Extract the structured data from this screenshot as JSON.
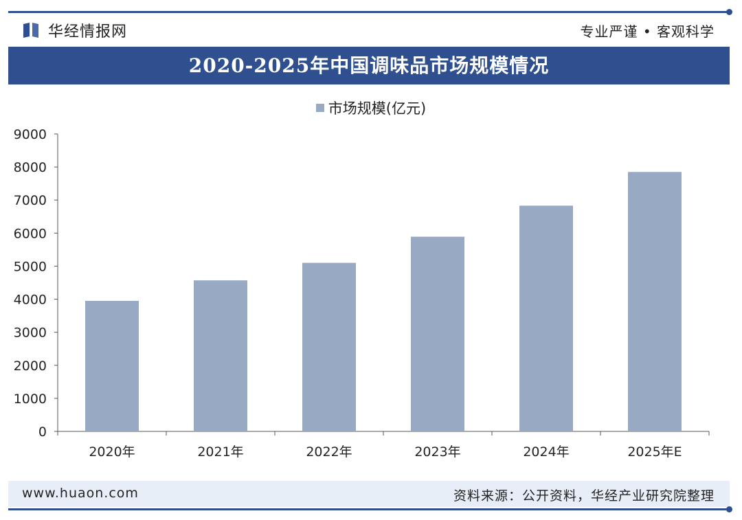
{
  "header": {
    "brand": "华经情报网",
    "slogan": "专业严谨 • 客观科学"
  },
  "chart_data": {
    "type": "bar",
    "title": "2020-2025年中国调味品市场规模情况",
    "categories": [
      "2020年",
      "2021年",
      "2022年",
      "2023年",
      "2024年",
      "2025年E"
    ],
    "series": [
      {
        "name": "市场规模(亿元)",
        "values": [
          3950,
          4570,
          5100,
          5890,
          6830,
          7850
        ],
        "color": "#98a9c4"
      }
    ],
    "ylim": [
      0,
      9000
    ],
    "yticks": [
      0,
      1000,
      2000,
      3000,
      4000,
      5000,
      6000,
      7000,
      8000,
      9000
    ],
    "grid": false,
    "legend": "top-center"
  },
  "footer": {
    "website": "www.huaon.com",
    "source": "资料来源：公开资料，华经产业研究院整理"
  },
  "colors": {
    "brand_blue": "#2f4f8f",
    "bar": "#98a9c4",
    "footer_bg": "#e8eef7"
  }
}
